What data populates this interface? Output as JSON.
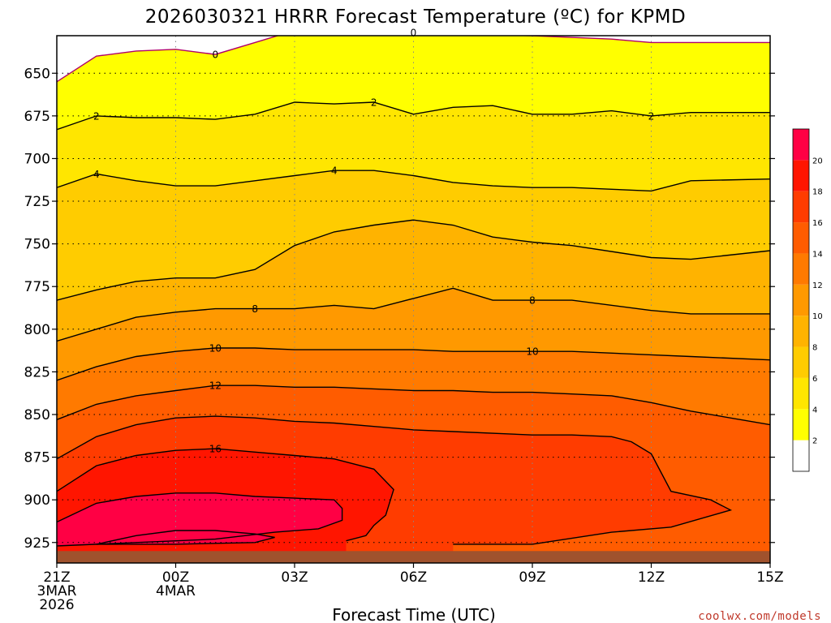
{
  "chart_data": {
    "type": "contour",
    "title": "2026030321 HRRR Forecast Temperature (ºC) for KPMD",
    "xlabel": "Forecast Time (UTC)",
    "ylabel": "",
    "credit": "coolwx.com/models",
    "x_hours": [
      0,
      3,
      6,
      9,
      12,
      15,
      18
    ],
    "x_ticks": [
      {
        "hour": 0,
        "lines": [
          "21Z",
          "3MAR",
          "2026"
        ]
      },
      {
        "hour": 3,
        "lines": [
          "00Z",
          "4MAR"
        ]
      },
      {
        "hour": 6,
        "lines": [
          "03Z"
        ]
      },
      {
        "hour": 9,
        "lines": [
          "06Z"
        ]
      },
      {
        "hour": 12,
        "lines": [
          "09Z"
        ]
      },
      {
        "hour": 15,
        "lines": [
          "12Z"
        ]
      },
      {
        "hour": 18,
        "lines": [
          "15Z"
        ]
      }
    ],
    "y_pressure_ticks": [
      650,
      675,
      700,
      725,
      750,
      775,
      800,
      825,
      850,
      875,
      900,
      925
    ],
    "ylim": [
      628,
      937
    ],
    "surface_pressure": 930,
    "colorbar": {
      "levels": [
        2,
        4,
        6,
        8,
        10,
        12,
        14,
        16,
        18,
        20
      ],
      "colors": [
        "#ffffff",
        "#ffff00",
        "#ffe600",
        "#ffcc00",
        "#ffb300",
        "#ff9900",
        "#ff7a00",
        "#ff5c00",
        "#ff3c00",
        "#ff1500",
        "#ff0044"
      ]
    },
    "isotherms": [
      {
        "temp": 0,
        "color": "#b0006a",
        "points": [
          [
            0,
            655
          ],
          [
            1,
            640
          ],
          [
            2,
            637
          ],
          [
            3,
            636
          ],
          [
            4,
            639
          ],
          [
            5,
            632
          ],
          [
            6,
            625
          ],
          [
            7,
            626
          ],
          [
            8,
            627
          ],
          [
            9,
            626
          ],
          [
            10,
            627
          ],
          [
            12,
            628
          ],
          [
            14,
            630
          ],
          [
            15,
            632
          ],
          [
            16,
            632
          ],
          [
            18,
            632
          ]
        ],
        "labels": [
          {
            "hour": 4,
            "p": 639
          },
          {
            "hour": 9,
            "p": 626
          }
        ]
      },
      {
        "temp": 2,
        "color": "#000000",
        "points": [
          [
            0,
            683
          ],
          [
            1,
            675
          ],
          [
            2,
            676
          ],
          [
            3,
            676
          ],
          [
            4,
            677
          ],
          [
            5,
            674
          ],
          [
            6,
            667
          ],
          [
            7,
            668
          ],
          [
            8,
            667
          ],
          [
            9,
            674
          ],
          [
            10,
            670
          ],
          [
            11,
            669
          ],
          [
            12,
            674
          ],
          [
            13,
            674
          ],
          [
            14,
            672
          ],
          [
            15,
            675
          ],
          [
            16,
            673
          ],
          [
            18,
            673
          ]
        ],
        "labels": [
          {
            "hour": 1,
            "p": 675
          },
          {
            "hour": 8,
            "p": 667
          },
          {
            "hour": 15,
            "p": 675
          }
        ]
      },
      {
        "temp": 4,
        "color": "#000000",
        "points": [
          [
            0,
            717
          ],
          [
            1,
            709
          ],
          [
            2,
            713
          ],
          [
            3,
            716
          ],
          [
            4,
            716
          ],
          [
            5,
            713
          ],
          [
            6,
            710
          ],
          [
            7,
            707
          ],
          [
            8,
            707
          ],
          [
            9,
            710
          ],
          [
            10,
            714
          ],
          [
            11,
            716
          ],
          [
            12,
            717
          ],
          [
            13,
            717
          ],
          [
            14,
            718
          ],
          [
            15,
            719
          ],
          [
            16,
            713
          ],
          [
            18,
            712
          ]
        ],
        "labels": [
          {
            "hour": 1,
            "p": 709
          },
          {
            "hour": 7,
            "p": 707
          }
        ]
      },
      {
        "temp": 6,
        "color": "#000000",
        "points": [
          [
            0,
            783
          ],
          [
            1,
            777
          ],
          [
            2,
            772
          ],
          [
            3,
            770
          ],
          [
            4,
            770
          ],
          [
            5,
            765
          ],
          [
            6,
            751
          ],
          [
            7,
            743
          ],
          [
            8,
            739
          ],
          [
            9,
            736
          ],
          [
            10,
            739
          ],
          [
            11,
            746
          ],
          [
            12,
            749
          ],
          [
            13,
            751
          ],
          [
            15,
            758
          ],
          [
            16,
            759
          ],
          [
            18,
            754
          ]
        ],
        "labels": []
      },
      {
        "temp": 8,
        "color": "#000000",
        "points": [
          [
            0,
            807
          ],
          [
            1,
            800
          ],
          [
            2,
            793
          ],
          [
            3,
            790
          ],
          [
            4,
            788
          ],
          [
            5,
            788
          ],
          [
            6,
            788
          ],
          [
            7,
            786
          ],
          [
            8,
            788
          ],
          [
            9,
            782
          ],
          [
            10,
            776
          ],
          [
            11,
            783
          ],
          [
            12,
            783
          ],
          [
            13,
            783
          ],
          [
            15,
            789
          ],
          [
            16,
            791
          ],
          [
            18,
            791
          ]
        ],
        "labels": [
          {
            "hour": 5,
            "p": 788
          },
          {
            "hour": 12,
            "p": 783
          }
        ]
      },
      {
        "temp": 10,
        "color": "#000000",
        "points": [
          [
            0,
            830
          ],
          [
            1,
            822
          ],
          [
            2,
            816
          ],
          [
            3,
            813
          ],
          [
            4,
            811
          ],
          [
            5,
            811
          ],
          [
            6,
            812
          ],
          [
            7,
            812
          ],
          [
            8,
            812
          ],
          [
            9,
            812
          ],
          [
            10,
            813
          ],
          [
            11,
            813
          ],
          [
            12,
            813
          ],
          [
            13,
            813
          ],
          [
            15,
            815
          ],
          [
            16,
            816
          ],
          [
            18,
            818
          ]
        ],
        "labels": [
          {
            "hour": 4,
            "p": 811
          },
          {
            "hour": 12,
            "p": 813
          }
        ]
      },
      {
        "temp": 12,
        "color": "#000000",
        "points": [
          [
            0,
            853
          ],
          [
            1,
            844
          ],
          [
            2,
            839
          ],
          [
            3,
            836
          ],
          [
            4,
            833
          ],
          [
            5,
            833
          ],
          [
            6,
            834
          ],
          [
            7,
            834
          ],
          [
            8,
            835
          ],
          [
            9,
            836
          ],
          [
            10,
            836
          ],
          [
            11,
            837
          ],
          [
            12,
            837
          ],
          [
            13,
            838
          ],
          [
            14,
            839
          ],
          [
            15,
            843
          ],
          [
            16,
            848
          ],
          [
            18,
            856
          ]
        ],
        "labels": [
          {
            "hour": 4,
            "p": 833
          }
        ]
      },
      {
        "temp": 14,
        "color": "#000000",
        "points": [
          [
            0,
            876
          ],
          [
            1,
            863
          ],
          [
            2,
            856
          ],
          [
            3,
            852
          ],
          [
            4,
            851
          ],
          [
            5,
            852
          ],
          [
            6,
            854
          ],
          [
            7,
            855
          ],
          [
            8,
            857
          ],
          [
            9,
            859
          ],
          [
            10,
            860
          ],
          [
            12,
            862
          ],
          [
            13,
            862
          ],
          [
            14,
            863
          ],
          [
            14.5,
            866
          ],
          [
            15,
            873
          ],
          [
            15.5,
            895
          ],
          [
            16.5,
            900
          ],
          [
            17,
            906
          ],
          [
            15.5,
            916
          ],
          [
            14,
            919
          ],
          [
            12,
            926
          ],
          [
            10,
            926
          ]
        ],
        "labels": []
      },
      {
        "temp": 16,
        "color": "#000000",
        "points": [
          [
            0,
            895
          ],
          [
            1,
            880
          ],
          [
            2,
            874
          ],
          [
            3,
            871
          ],
          [
            4,
            870
          ],
          [
            5,
            872
          ],
          [
            6,
            874
          ],
          [
            7,
            876
          ],
          [
            8,
            882
          ],
          [
            8.5,
            894
          ],
          [
            8.3,
            909
          ],
          [
            8,
            915
          ],
          [
            7.8,
            921
          ],
          [
            7.3,
            924
          ]
        ],
        "labels": [
          {
            "hour": 4,
            "p": 870
          }
        ]
      },
      {
        "temp": 18,
        "color": "#000000",
        "points": [
          [
            0,
            913
          ],
          [
            1,
            902
          ],
          [
            2,
            898
          ],
          [
            3,
            896
          ],
          [
            4,
            896
          ],
          [
            5,
            898
          ],
          [
            6,
            899
          ],
          [
            7,
            900
          ],
          [
            7.2,
            905
          ],
          [
            7.2,
            912
          ],
          [
            6.6,
            917
          ],
          [
            5.5,
            919
          ],
          [
            4,
            923
          ],
          [
            2,
            925
          ],
          [
            0,
            927
          ]
        ],
        "labels": []
      },
      {
        "temp": 20,
        "color": "#000000",
        "points": [
          [
            1,
            926
          ],
          [
            2,
            921
          ],
          [
            3,
            918
          ],
          [
            4,
            918
          ],
          [
            5,
            920
          ],
          [
            5.5,
            922
          ],
          [
            5,
            925
          ],
          [
            3,
            926
          ],
          [
            1,
            926
          ]
        ],
        "labels": []
      }
    ]
  }
}
